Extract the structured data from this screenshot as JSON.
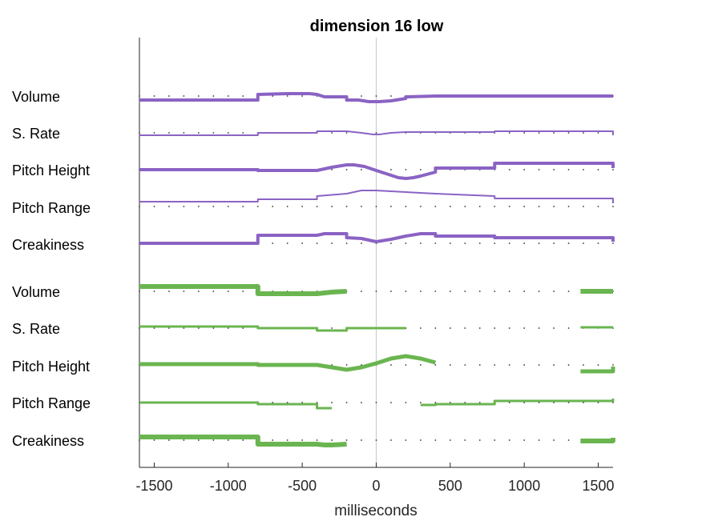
{
  "chart_data": {
    "type": "line",
    "title": "dimension 16 low",
    "xlabel": "milliseconds",
    "xlim": [
      -1600,
      1600
    ],
    "xticks": [
      -1500,
      -1000,
      -500,
      0,
      500,
      1000,
      1500
    ],
    "xtick_labels": [
      "-1500",
      "-1000",
      "-500",
      "0",
      "500",
      "1000",
      "1500"
    ],
    "zero_line": true,
    "dot_spacing_ms": 100,
    "colors": {
      "purple": "#8a63c4",
      "green": "#6ab550"
    },
    "groups": [
      {
        "color": "#8a63c4",
        "rows": [
          {
            "label": "Volume",
            "width": 4,
            "segments": [
              [
                [
                  -1600,
                  5
                ],
                [
                  -800,
                  5
                ],
                [
                  -800,
                  -2
                ],
                [
                  -600,
                  -3
                ],
                [
                  -450,
                  -3
                ],
                [
                  -400,
                  -2
                ],
                [
                  -350,
                  1
                ],
                [
                  -200,
                  1
                ],
                [
                  -200,
                  5
                ],
                [
                  -120,
                  5
                ],
                [
                  -50,
                  7
                ],
                [
                  20,
                  7
                ],
                [
                  100,
                  6
                ],
                [
                  200,
                  3
                ],
                [
                  200,
                  1
                ],
                [
                  400,
                  0
                ],
                [
                  1600,
                  0
                ]
              ]
            ]
          },
          {
            "label": "S. Rate",
            "width": 2,
            "segments": [
              [
                [
                  -1600,
                  3
                ],
                [
                  -800,
                  3
                ],
                [
                  -800,
                  0
                ],
                [
                  -400,
                  0
                ],
                [
                  -400,
                  -2
                ],
                [
                  -200,
                  -2
                ],
                [
                  -100,
                  0
                ],
                [
                  -20,
                  2
                ],
                [
                  20,
                  2
                ],
                [
                  100,
                  0
                ],
                [
                  200,
                  -1
                ],
                [
                  400,
                  -1
                ],
                [
                  800,
                  -1
                ],
                [
                  800,
                  -2
                ],
                [
                  1600,
                  -2
                ],
                [
                  1600,
                  3
                ]
              ]
            ]
          },
          {
            "label": "Pitch Height",
            "width": 4,
            "segments": [
              [
                [
                  -1600,
                  0
                ],
                [
                  -800,
                  0
                ],
                [
                  -800,
                  1
                ],
                [
                  -400,
                  1
                ],
                [
                  -350,
                  -1
                ],
                [
                  -300,
                  -3
                ],
                [
                  -200,
                  -6
                ],
                [
                  -150,
                  -6
                ],
                [
                  -80,
                  -4
                ],
                [
                  0,
                  1
                ],
                [
                  100,
                  7
                ],
                [
                  150,
                  10
                ],
                [
                  200,
                  11
                ],
                [
                  250,
                  10
                ],
                [
                  300,
                  8
                ],
                [
                  400,
                  3
                ],
                [
                  400,
                  -2
                ],
                [
                  800,
                  -2
                ],
                [
                  800,
                  -8
                ],
                [
                  1600,
                  -8
                ],
                [
                  1600,
                  -2
                ]
              ]
            ]
          },
          {
            "label": "Pitch Range",
            "width": 2,
            "segments": [
              [
                [
                  -1600,
                  -6
                ],
                [
                  -800,
                  -6
                ],
                [
                  -800,
                  -9
                ],
                [
                  -400,
                  -9
                ],
                [
                  -400,
                  -13
                ],
                [
                  -200,
                  -16
                ],
                [
                  -100,
                  -20
                ],
                [
                  0,
                  -20
                ],
                [
                  100,
                  -19
                ],
                [
                  200,
                  -18
                ],
                [
                  400,
                  -16
                ],
                [
                  800,
                  -13
                ],
                [
                  800,
                  -10
                ],
                [
                  1600,
                  -10
                ],
                [
                  1600,
                  -4
                ]
              ]
            ]
          },
          {
            "label": "Creakiness",
            "width": 4,
            "segments": [
              [
                [
                  -1600,
                  0
                ],
                [
                  -800,
                  0
                ],
                [
                  -800,
                  -10
                ],
                [
                  -400,
                  -10
                ],
                [
                  -350,
                  -12
                ],
                [
                  -200,
                  -12
                ],
                [
                  -200,
                  -7
                ],
                [
                  -100,
                  -6
                ],
                [
                  0,
                  -2
                ],
                [
                  100,
                  -5
                ],
                [
                  200,
                  -9
                ],
                [
                  300,
                  -12
                ],
                [
                  400,
                  -12
                ],
                [
                  400,
                  -9
                ],
                [
                  800,
                  -9
                ],
                [
                  800,
                  -7
                ],
                [
                  1600,
                  -7
                ],
                [
                  1600,
                  -2
                ]
              ]
            ]
          }
        ]
      },
      {
        "color": "#6ab550",
        "rows": [
          {
            "label": "Volume",
            "width": 6,
            "segments": [
              [
                [
                  -1600,
                  -6
                ],
                [
                  -800,
                  -6
                ],
                [
                  -800,
                  3
                ],
                [
                  -400,
                  3
                ],
                [
                  -350,
                  2
                ],
                [
                  -300,
                  1
                ],
                [
                  -200,
                  0
                ]
              ],
              [
                [
                  1380,
                  0
                ],
                [
                  1600,
                  0
                ]
              ]
            ]
          },
          {
            "label": "S. Rate",
            "width": 3,
            "segments": [
              [
                [
                  -1600,
                  -2
                ],
                [
                  -800,
                  -2
                ],
                [
                  -800,
                  0
                ],
                [
                  -400,
                  0
                ],
                [
                  -400,
                  3
                ],
                [
                  -200,
                  3
                ],
                [
                  -200,
                  0
                ],
                [
                  200,
                  0
                ]
              ],
              [
                [
                  1380,
                  -1
                ],
                [
                  1600,
                  -1
                ]
              ]
            ]
          },
          {
            "label": "Pitch Height",
            "width": 5,
            "segments": [
              [
                [
                  -1600,
                  -1
                ],
                [
                  -800,
                  -1
                ],
                [
                  -800,
                  0
                ],
                [
                  -400,
                  0
                ],
                [
                  -300,
                  3
                ],
                [
                  -200,
                  6
                ],
                [
                  -100,
                  3
                ],
                [
                  0,
                  -2
                ],
                [
                  100,
                  -8
                ],
                [
                  200,
                  -11
                ],
                [
                  300,
                  -8
                ],
                [
                  400,
                  -3
                ]
              ],
              [
                [
                  1380,
                  8
                ],
                [
                  1600,
                  8
                ],
                [
                  1600,
                  2
                ]
              ]
            ]
          },
          {
            "label": "Pitch Range",
            "width": 3,
            "segments": [
              [
                [
                  -1600,
                  0
                ],
                [
                  -800,
                  0
                ],
                [
                  -800,
                  2
                ],
                [
                  -400,
                  2
                ],
                [
                  -400,
                  7
                ],
                [
                  -300,
                  7
                ]
              ],
              [
                [
                  300,
                  3
                ],
                [
                  400,
                  3
                ],
                [
                  400,
                  2
                ],
                [
                  800,
                  2
                ],
                [
                  800,
                  -2
                ],
                [
                  1600,
                  -2
                ],
                [
                  1600,
                  -5
                ]
              ]
            ]
          },
          {
            "label": "Creakiness",
            "width": 6,
            "segments": [
              [
                [
                  -1600,
                  -4
                ],
                [
                  -800,
                  -4
                ],
                [
                  -800,
                  5
                ],
                [
                  -400,
                  5
                ],
                [
                  -350,
                  6
                ],
                [
                  -300,
                  6
                ],
                [
                  -200,
                  5
                ]
              ],
              [
                [
                  1380,
                  1
                ],
                [
                  1600,
                  1
                ],
                [
                  1600,
                  -3
                ]
              ]
            ]
          }
        ]
      }
    ]
  }
}
